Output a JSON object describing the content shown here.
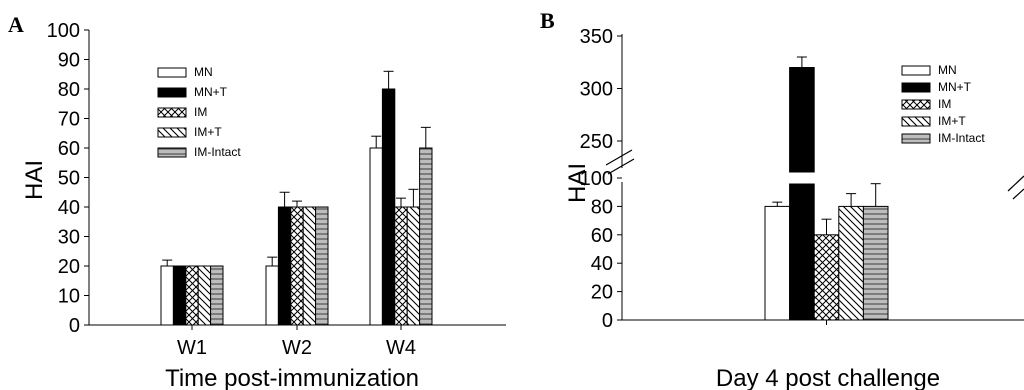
{
  "chart_data": [
    {
      "panel": "A",
      "type": "bar",
      "ylabel": "HAI",
      "xlabel": "Time post-immunization",
      "ylim": [
        0,
        100
      ],
      "yticks": [
        0,
        10,
        20,
        30,
        40,
        50,
        60,
        70,
        80,
        90,
        100
      ],
      "categories": [
        "W1",
        "W2",
        "W4"
      ],
      "legend_position": "upper-left-center",
      "series": [
        {
          "name": "MN",
          "pattern": "white",
          "values": [
            20,
            20,
            60
          ],
          "errors": [
            2,
            3,
            4
          ]
        },
        {
          "name": "MN+T",
          "pattern": "black",
          "values": [
            20,
            40,
            80
          ],
          "errors": [
            0,
            5,
            6
          ]
        },
        {
          "name": "IM",
          "pattern": "crosshatch",
          "values": [
            20,
            40,
            40
          ],
          "errors": [
            0,
            2,
            3
          ]
        },
        {
          "name": "IM+T",
          "pattern": "diagonal",
          "values": [
            20,
            40,
            40
          ],
          "errors": [
            0,
            0,
            6
          ]
        },
        {
          "name": "IM-Intact",
          "pattern": "horizontal-gray",
          "values": [
            20,
            40,
            60
          ],
          "errors": [
            0,
            0,
            7
          ]
        }
      ]
    },
    {
      "panel": "B",
      "type": "bar",
      "ylabel": "HAI",
      "xlabel": "Day 4 post challenge",
      "broken_axis": true,
      "lower_ylim": [
        0,
        100
      ],
      "upper_ylim": [
        100,
        350
      ],
      "yticks_lower": [
        0,
        20,
        40,
        60,
        80,
        100
      ],
      "yticks_upper": [
        250,
        300,
        350
      ],
      "legend_position": "upper-right",
      "series": [
        {
          "name": "MN",
          "pattern": "white",
          "value": 80,
          "error": 3
        },
        {
          "name": "MN+T",
          "pattern": "black",
          "value": 320,
          "error": 10
        },
        {
          "name": "IM",
          "pattern": "crosshatch",
          "value": 60,
          "error": 11
        },
        {
          "name": "IM+T",
          "pattern": "diagonal",
          "value": 80,
          "error": 9
        },
        {
          "name": "IM-Intact",
          "pattern": "horizontal-gray",
          "value": 80,
          "error": 16
        }
      ]
    }
  ]
}
